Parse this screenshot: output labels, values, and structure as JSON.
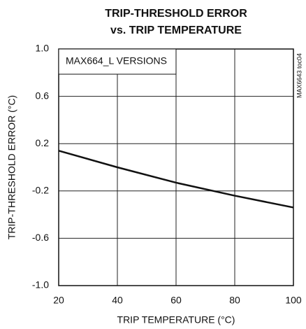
{
  "chart_data": {
    "type": "line",
    "title": [
      "TRIP-THRESHOLD ERROR",
      "vs. TRIP TEMPERATURE"
    ],
    "annotations": [
      "MAX664_L VERSIONS",
      "MAX6643 toc04"
    ],
    "xlabel": "TRIP TEMPERATURE (°C)",
    "ylabel": "TRIP-THRESHOLD ERROR (°C)",
    "x": [
      20,
      40,
      60,
      80,
      100
    ],
    "series": [
      {
        "name": "MAX664_L",
        "color": "#111111",
        "values": [
          0.14,
          0.0,
          -0.13,
          -0.24,
          -0.34
        ]
      }
    ],
    "xlim": [
      20,
      100
    ],
    "xticks": [
      20,
      40,
      60,
      80,
      100
    ],
    "ylim": [
      -1,
      1
    ],
    "yticks": [
      {
        "value": -1,
        "label": "-1.0"
      },
      -0.6,
      -0.2,
      0.2,
      0.6,
      {
        "value": 1,
        "label": "1.0"
      }
    ],
    "grid": true
  }
}
